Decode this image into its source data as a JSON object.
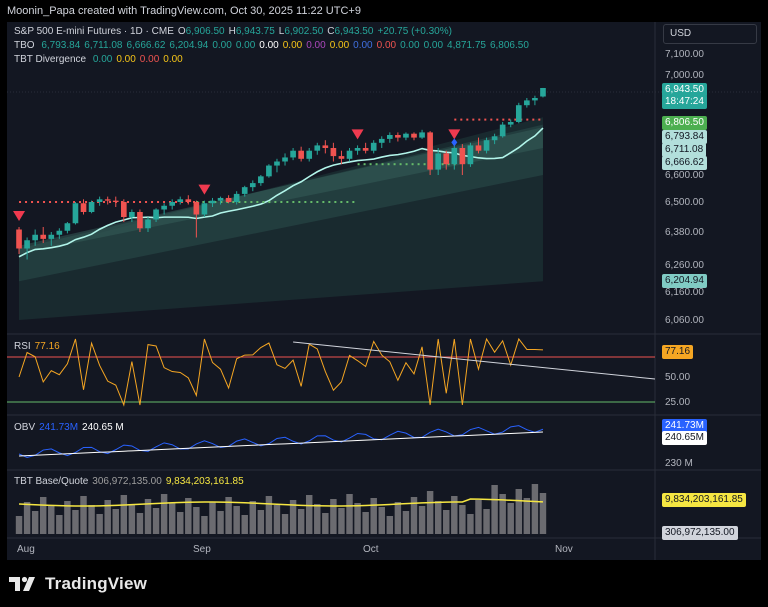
{
  "header": {
    "caption": "Moonin_Papa created with TradingView.com, Oct 30, 2025 11:22 UTC+9"
  },
  "main_legend": {
    "symbol": "S&P 500 E-mini Futures · 1D · CME",
    "o_label": "O",
    "o_val": "6,906.50",
    "h_label": "H",
    "h_val": "6,943.75",
    "l_label": "L",
    "l_val": "6,902.50",
    "c_label": "C",
    "c_val": "6,943.50",
    "change": "+20.75 (+0.30%)"
  },
  "tbo_legend": {
    "name": "TBO",
    "values": [
      "6,793.84",
      "6,711.08",
      "6,666.62",
      "6,204.94",
      "0.00",
      "0.00",
      "0.00",
      "0.00",
      "0.00",
      "0.00",
      "0.00",
      "0.00",
      "0.00",
      "0.00",
      "4,871.75",
      "6,806.50"
    ],
    "colors": [
      "#26a69a",
      "#26a69a",
      "#26a69a",
      "#26a69a",
      "#26a69a",
      "#26a69a",
      "#ffffff",
      "#f5c518",
      "#ab47bc",
      "#f5c518",
      "#3f6fe0",
      "#ef5350",
      "#26a69a",
      "#26a69a",
      "#26a69a",
      "#26a69a"
    ]
  },
  "div_legend": {
    "name": "TBT Divergence",
    "values": [
      "0.00",
      "0.00",
      "0.00",
      "0.00"
    ],
    "colors": [
      "#26a69a",
      "#f5c518",
      "#ef5350",
      "#f5c518"
    ]
  },
  "currency": "USD",
  "price_axis": {
    "ticks": [
      "7,100.00",
      "7,000.00",
      "6,900.00",
      "6,800.00",
      "6,700.00",
      "6,600.00",
      "6,500.00",
      "6,380.00",
      "6,260.00",
      "6,160.00",
      "6,060.00"
    ]
  },
  "price_badges": [
    {
      "text": "6,943.50",
      "bg": "#26a69a",
      "fg": "#ffffff"
    },
    {
      "text": "18:47:24",
      "bg": "#26a69a",
      "fg": "#ffffff"
    },
    {
      "text": "6,806.50",
      "bg": "#4caf50",
      "fg": "#ffffff"
    },
    {
      "text": "6,793.84",
      "bg": "#b2dfdb",
      "fg": "#131722"
    },
    {
      "text": "6,711.08",
      "bg": "#b2dfdb",
      "fg": "#131722"
    },
    {
      "text": "6,666.62",
      "bg": "#b2dfdb",
      "fg": "#131722"
    },
    {
      "text": "6,204.94",
      "bg": "#80cbc4",
      "fg": "#131722"
    }
  ],
  "rsi": {
    "label": "RSI",
    "value": "77.16",
    "ticks": [
      "50.00",
      "25.00"
    ],
    "badge": "77.16"
  },
  "obv": {
    "label": "OBV",
    "value1": "241.73M",
    "value2": "240.65 M",
    "badge1": "241.73M",
    "badge2": "240.65M",
    "tick": "230 M"
  },
  "tbt": {
    "label": "TBT Base/Quote",
    "value1": "306,972,135.00",
    "value2": "9,834,203,161.85",
    "badge1": "9,834,203,161.85",
    "badge2": "306,972,135.00"
  },
  "time_axis": [
    "Aug",
    "Sep",
    "Oct",
    "Nov"
  ],
  "brand": "TradingView",
  "chart_data": {
    "type": "candlestick",
    "interval": "1D",
    "xlabels": [
      "Aug",
      "Sep",
      "Oct",
      "Nov"
    ],
    "ohlc": [
      [
        6390,
        6400,
        6300,
        6320
      ],
      [
        6320,
        6360,
        6280,
        6350
      ],
      [
        6350,
        6390,
        6330,
        6370
      ],
      [
        6370,
        6400,
        6340,
        6355
      ],
      [
        6355,
        6380,
        6330,
        6370
      ],
      [
        6370,
        6395,
        6355,
        6385
      ],
      [
        6385,
        6420,
        6375,
        6415
      ],
      [
        6415,
        6500,
        6410,
        6495
      ],
      [
        6495,
        6510,
        6450,
        6460
      ],
      [
        6460,
        6505,
        6455,
        6500
      ],
      [
        6500,
        6520,
        6485,
        6510
      ],
      [
        6510,
        6520,
        6490,
        6505
      ],
      [
        6505,
        6520,
        6480,
        6500
      ],
      [
        6500,
        6510,
        6420,
        6440
      ],
      [
        6440,
        6470,
        6420,
        6460
      ],
      [
        6460,
        6470,
        6380,
        6395
      ],
      [
        6395,
        6440,
        6380,
        6430
      ],
      [
        6430,
        6475,
        6420,
        6470
      ],
      [
        6470,
        6495,
        6450,
        6485
      ],
      [
        6485,
        6510,
        6470,
        6500
      ],
      [
        6500,
        6520,
        6490,
        6510
      ],
      [
        6510,
        6525,
        6490,
        6500
      ],
      [
        6500,
        6505,
        6360,
        6450
      ],
      [
        6450,
        6505,
        6440,
        6495
      ],
      [
        6495,
        6515,
        6480,
        6505
      ],
      [
        6505,
        6520,
        6490,
        6515
      ],
      [
        6515,
        6525,
        6495,
        6500
      ],
      [
        6500,
        6540,
        6490,
        6530
      ],
      [
        6530,
        6560,
        6520,
        6555
      ],
      [
        6555,
        6580,
        6540,
        6570
      ],
      [
        6570,
        6600,
        6560,
        6595
      ],
      [
        6595,
        6640,
        6590,
        6635
      ],
      [
        6635,
        6660,
        6610,
        6650
      ],
      [
        6650,
        6680,
        6635,
        6665
      ],
      [
        6665,
        6700,
        6655,
        6690
      ],
      [
        6690,
        6705,
        6650,
        6660
      ],
      [
        6660,
        6700,
        6650,
        6690
      ],
      [
        6690,
        6720,
        6675,
        6710
      ],
      [
        6710,
        6730,
        6680,
        6700
      ],
      [
        6700,
        6720,
        6650,
        6670
      ],
      [
        6670,
        6690,
        6640,
        6660
      ],
      [
        6660,
        6700,
        6650,
        6690
      ],
      [
        6690,
        6710,
        6675,
        6700
      ],
      [
        6700,
        6720,
        6680,
        6690
      ],
      [
        6690,
        6730,
        6680,
        6720
      ],
      [
        6720,
        6745,
        6700,
        6735
      ],
      [
        6735,
        6760,
        6720,
        6750
      ],
      [
        6750,
        6760,
        6725,
        6740
      ],
      [
        6740,
        6760,
        6730,
        6755
      ],
      [
        6755,
        6760,
        6730,
        6740
      ],
      [
        6740,
        6770,
        6735,
        6760
      ],
      [
        6760,
        6765,
        6600,
        6620
      ],
      [
        6620,
        6700,
        6600,
        6680
      ],
      [
        6680,
        6690,
        6620,
        6640
      ],
      [
        6640,
        6710,
        6620,
        6700
      ],
      [
        6700,
        6715,
        6600,
        6640
      ],
      [
        6640,
        6720,
        6630,
        6710
      ],
      [
        6710,
        6740,
        6680,
        6690
      ],
      [
        6690,
        6740,
        6680,
        6730
      ],
      [
        6730,
        6755,
        6715,
        6745
      ],
      [
        6745,
        6800,
        6740,
        6790
      ],
      [
        6790,
        6810,
        6780,
        6800
      ],
      [
        6800,
        6880,
        6795,
        6870
      ],
      [
        6870,
        6900,
        6860,
        6890
      ],
      [
        6890,
        6910,
        6870,
        6900
      ],
      [
        6906.5,
        6943.75,
        6902.5,
        6943.5
      ]
    ],
    "signals": {
      "sell_arrow_bar_index": [
        0,
        23,
        42,
        54
      ],
      "diamond_bar_index": [
        54
      ]
    },
    "rsi_last": 77.16,
    "obv_last": "241.73M",
    "obv_ma_last": "240.65M",
    "tbt_base_quote": [
      "306,972,135.00",
      "9,834,203,161.85"
    ],
    "y_range": [
      6000,
      7150
    ]
  }
}
